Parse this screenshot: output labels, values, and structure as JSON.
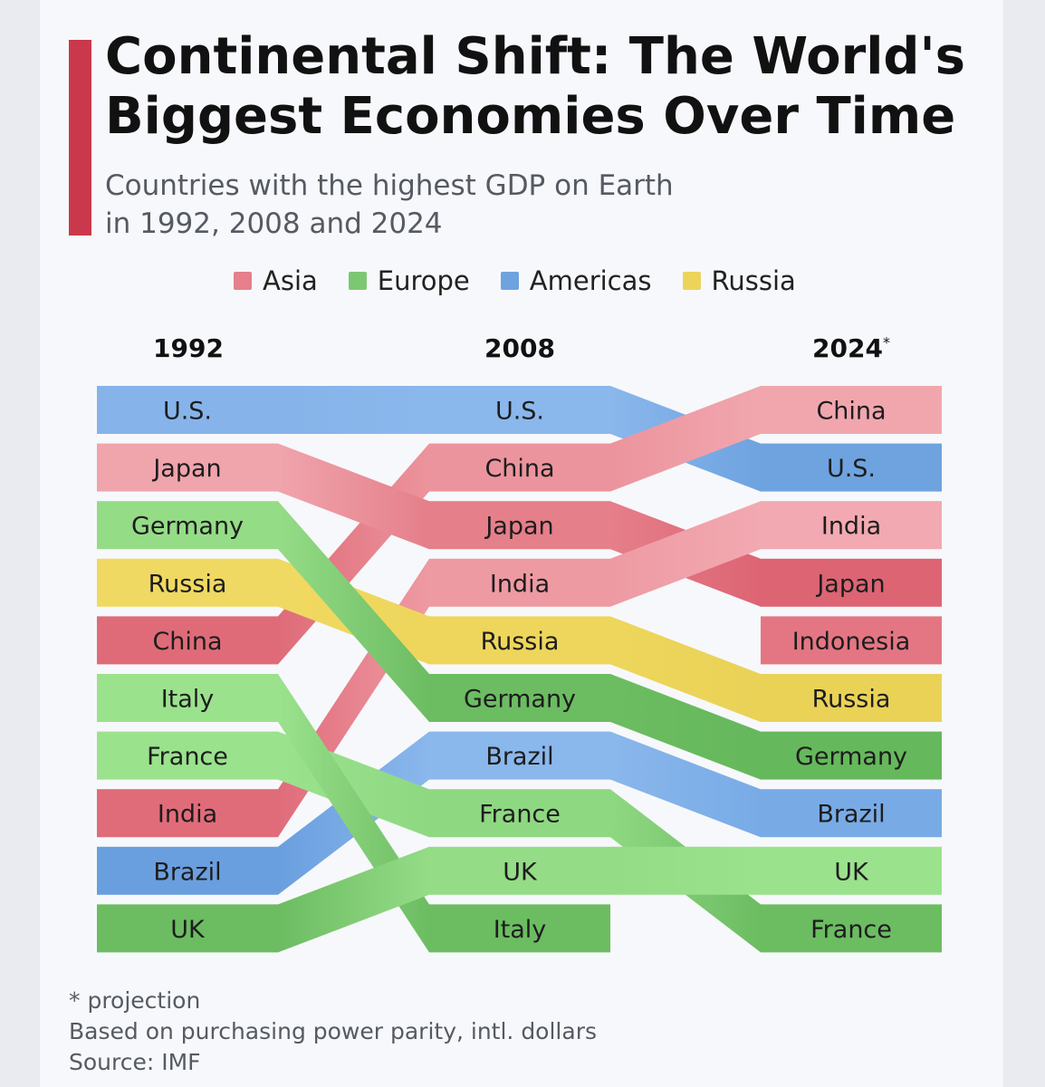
{
  "title": "Continental Shift: The World's Biggest Economies Over Time",
  "subtitle_line1": "Countries with the highest GDP on Earth",
  "subtitle_line2": "in 1992, 2008 and 2024",
  "legend": [
    {
      "label": "Asia",
      "color": "#e5808c"
    },
    {
      "label": "Europe",
      "color": "#7cc872"
    },
    {
      "label": "Americas",
      "color": "#6ea3e0"
    },
    {
      "label": "Russia",
      "color": "#ecd45a"
    }
  ],
  "footer": {
    "note": "* projection",
    "basis": "Based on purchasing power parity, intl. dollars",
    "source": "Source: IMF"
  },
  "chart_data": {
    "type": "table",
    "columns": [
      {
        "year": "1992",
        "marker": ""
      },
      {
        "year": "2008",
        "marker": ""
      },
      {
        "year": "2024",
        "marker": "*"
      }
    ],
    "rankings": [
      {
        "name": "U.S.",
        "region": "Americas",
        "ranks": [
          1,
          1,
          2
        ],
        "colors": [
          "#86b4ea",
          "#8ab7ec",
          "#6ea3e0"
        ]
      },
      {
        "name": "China",
        "region": "Asia",
        "ranks": [
          5,
          2,
          1
        ],
        "colors": [
          "#df6b78",
          "#ec949d",
          "#f1a6ae"
        ]
      },
      {
        "name": "Japan",
        "region": "Asia",
        "ranks": [
          2,
          3,
          4
        ],
        "colors": [
          "#f0a4ac",
          "#e57f8a",
          "#dd6473"
        ]
      },
      {
        "name": "India",
        "region": "Asia",
        "ranks": [
          8,
          4,
          3
        ],
        "colors": [
          "#e06c7a",
          "#ee9aa3",
          "#f2a9b1"
        ]
      },
      {
        "name": "Indonesia",
        "region": "Asia",
        "ranks": [
          null,
          null,
          5
        ],
        "colors": [
          null,
          null,
          "#e47683"
        ]
      },
      {
        "name": "Russia",
        "region": "Russia",
        "ranks": [
          4,
          5,
          6
        ],
        "colors": [
          "#f0d962",
          "#eed65c",
          "#ead257"
        ]
      },
      {
        "name": "Germany",
        "region": "Europe",
        "ranks": [
          3,
          6,
          7
        ],
        "colors": [
          "#95dc87",
          "#6cbc62",
          "#66b85c"
        ]
      },
      {
        "name": "Brazil",
        "region": "Americas",
        "ranks": [
          9,
          7,
          8
        ],
        "colors": [
          "#6a9fdf",
          "#8ab7ec",
          "#78abe6"
        ]
      },
      {
        "name": "France",
        "region": "Europe",
        "ranks": [
          7,
          8,
          10
        ],
        "colors": [
          "#9be28d",
          "#8fd882",
          "#6cbc62"
        ]
      },
      {
        "name": "Italy",
        "region": "Europe",
        "ranks": [
          6,
          10,
          null
        ],
        "colors": [
          "#9be28d",
          "#6cbc62",
          null
        ]
      },
      {
        "name": "UK",
        "region": "Europe",
        "ranks": [
          10,
          9,
          9
        ],
        "colors": [
          "#6cbc62",
          "#95dc87",
          "#9be28d"
        ]
      }
    ]
  }
}
